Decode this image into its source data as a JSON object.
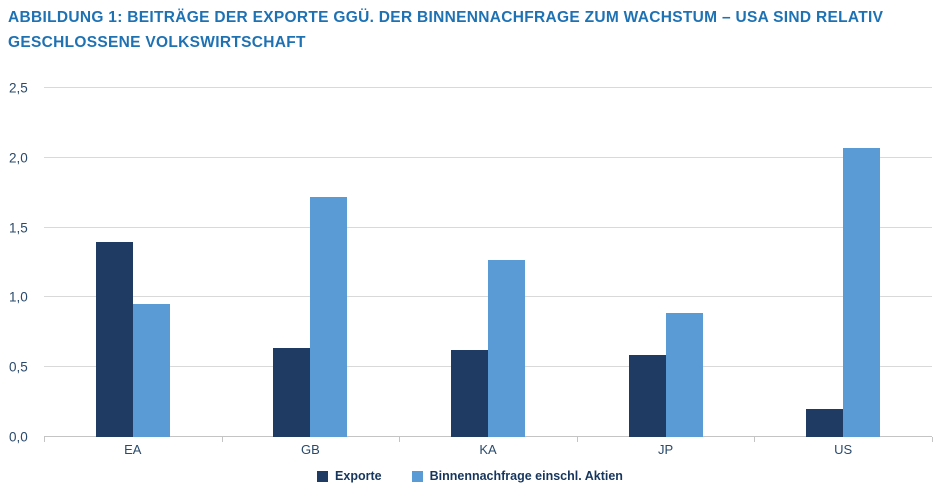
{
  "figure": {
    "title_line1": "ABBILDUNG 1: BEITRÄGE DER EXPORTE GGÜ. DER BINNENNACHFRAGE ZUM WACHSTUM – USA SIND RELATIV",
    "title_line2": "GESCHLOSSENE VOLKSWIRTSCHAFT"
  },
  "colors": {
    "title": "#1e72b4",
    "bar_dark": "#1f3a63",
    "bar_light": "#5b9bd5",
    "gridline": "#d9d9d9",
    "axis": "#c4c4c4",
    "axis_text": "#2a4a6b",
    "legend_text": "#17365d"
  },
  "chart_data": {
    "type": "bar",
    "categories": [
      "EA",
      "GB",
      "KA",
      "JP",
      "US"
    ],
    "series": [
      {
        "name": "Exporte",
        "color": "#1f3a63",
        "values": [
          1.4,
          0.64,
          0.62,
          0.59,
          0.2
        ]
      },
      {
        "name": "Binnennachfrage einschl. Aktien",
        "color": "#5b9bd5",
        "values": [
          0.95,
          1.72,
          1.27,
          0.89,
          2.07
        ]
      }
    ],
    "ylim": [
      0,
      2.5
    ],
    "yticks": [
      "0,0",
      "0,5",
      "1,0",
      "1,5",
      "2,0",
      "2,5"
    ],
    "ytick_values": [
      0,
      0.5,
      1,
      1.5,
      2,
      2.5
    ],
    "grid": true,
    "legend_position": "bottom"
  }
}
